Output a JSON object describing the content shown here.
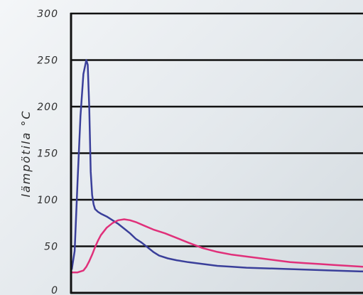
{
  "chart_data": {
    "type": "line",
    "title": "",
    "xlabel": "",
    "ylabel": "lämpötila °C",
    "ylim": [
      0,
      300
    ],
    "yticks": [
      "0",
      "50",
      "100",
      "150",
      "200",
      "250",
      "300"
    ],
    "grid": true,
    "x_range": [
      0,
      100
    ],
    "series": [
      {
        "color": "#3a3f9a",
        "x": [
          0,
          1,
          2,
          3,
          4,
          5,
          5.5,
          6,
          6.5,
          7,
          7.5,
          8,
          9,
          10,
          12,
          14,
          16,
          18,
          20,
          22,
          24,
          26,
          28,
          30,
          33,
          36,
          40,
          45,
          50,
          55,
          60,
          70,
          80,
          90,
          100
        ],
        "y": [
          25,
          45,
          120,
          190,
          235,
          250,
          245,
          200,
          130,
          105,
          95,
          90,
          87,
          85,
          82,
          78,
          74,
          69,
          64,
          58,
          54,
          49,
          44,
          40,
          37,
          35,
          33,
          31,
          29,
          28,
          27,
          26,
          25,
          24,
          23
        ]
      },
      {
        "color": "#e0307a",
        "x": [
          0,
          2,
          4,
          5,
          6,
          7,
          8,
          9,
          10,
          12,
          14,
          16,
          18,
          20,
          22,
          25,
          28,
          32,
          36,
          40,
          45,
          50,
          55,
          60,
          65,
          70,
          75,
          80,
          85,
          90,
          95,
          100
        ],
        "y": [
          22,
          22,
          24,
          28,
          34,
          41,
          49,
          56,
          62,
          70,
          75,
          78,
          79,
          78,
          76,
          72,
          68,
          64,
          59,
          54,
          48,
          44,
          41,
          39,
          37,
          35,
          33,
          32,
          31,
          30,
          29,
          28
        ]
      }
    ]
  }
}
